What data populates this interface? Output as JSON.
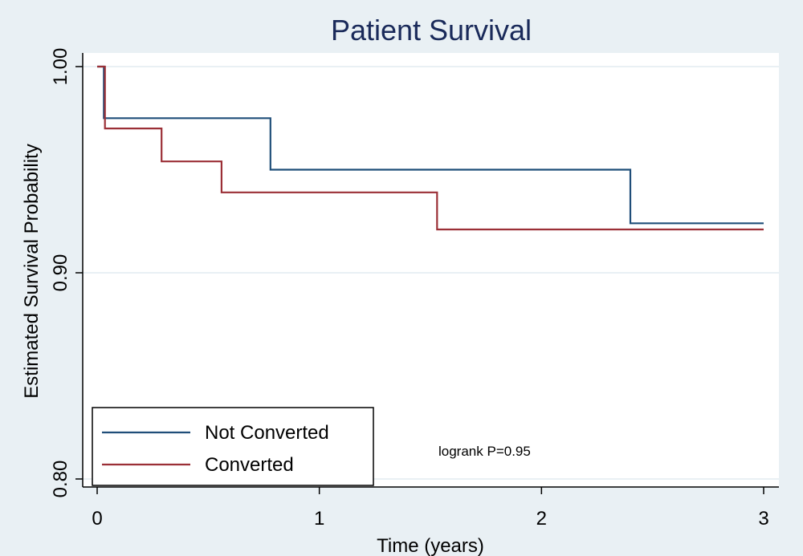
{
  "chart_data": {
    "type": "line",
    "step": true,
    "title": "Patient Survival",
    "xlabel": "Time (years)",
    "ylabel": "Estimated Survival Probability",
    "xlim": [
      0,
      3
    ],
    "ylim": [
      0.8,
      1.0
    ],
    "x_ticks": [
      {
        "value": 0,
        "label": "0"
      },
      {
        "value": 1,
        "label": "1"
      },
      {
        "value": 2,
        "label": "2"
      },
      {
        "value": 3,
        "label": "3"
      }
    ],
    "y_ticks": [
      {
        "value": 0.8,
        "label": "0.80"
      },
      {
        "value": 0.9,
        "label": "0.90"
      },
      {
        "value": 1.0,
        "label": "1.00"
      }
    ],
    "grid": "horizontal",
    "legend": "bottom-left",
    "annotation": "logrank P=0.95",
    "series": [
      {
        "name": "Not Converted",
        "color": "#1f4e79",
        "points": [
          [
            0,
            1.0
          ],
          [
            0.03,
            1.0
          ],
          [
            0.03,
            0.975
          ],
          [
            0.78,
            0.975
          ],
          [
            0.78,
            0.95
          ],
          [
            2.4,
            0.95
          ],
          [
            2.4,
            0.924
          ],
          [
            3.0,
            0.924
          ]
        ]
      },
      {
        "name": "Converted",
        "color": "#9b2f36",
        "points": [
          [
            0,
            1.0
          ],
          [
            0.035,
            1.0
          ],
          [
            0.035,
            0.97
          ],
          [
            0.29,
            0.97
          ],
          [
            0.29,
            0.954
          ],
          [
            0.56,
            0.954
          ],
          [
            0.56,
            0.939
          ],
          [
            1.53,
            0.939
          ],
          [
            1.53,
            0.921
          ],
          [
            3.0,
            0.921
          ]
        ]
      }
    ]
  }
}
